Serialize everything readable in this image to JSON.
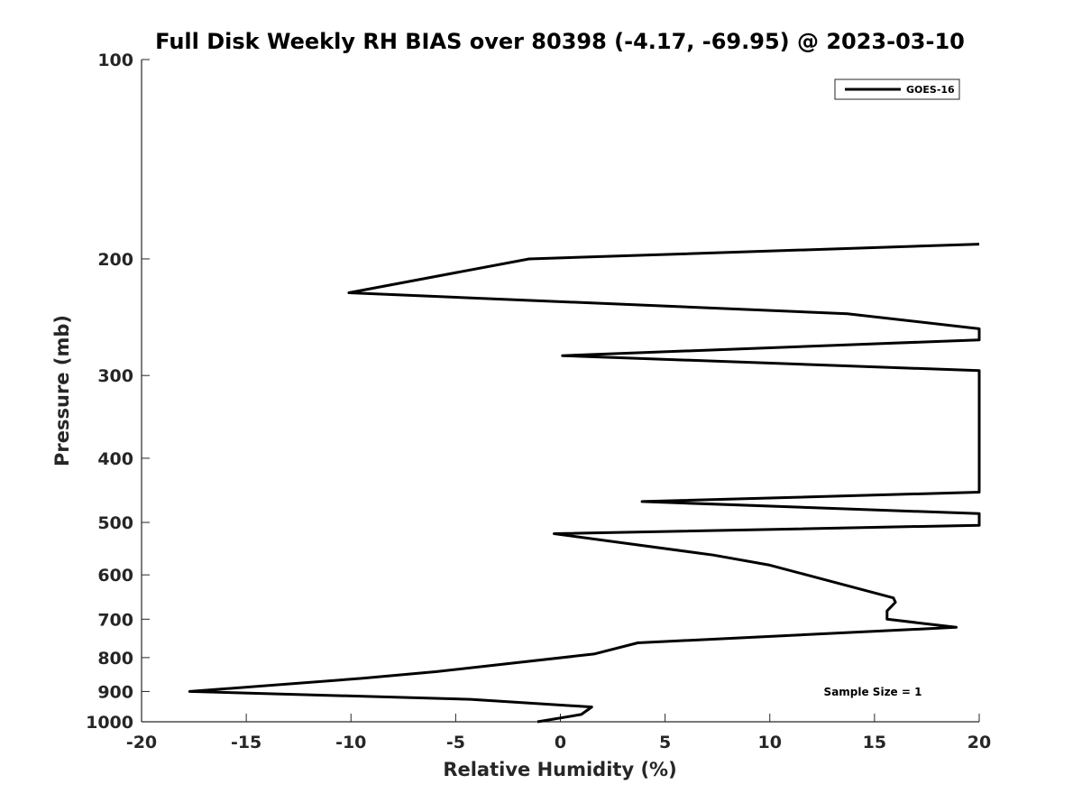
{
  "chart_data": {
    "type": "line",
    "title": "Full Disk Weekly RH BIAS over 80398 (-4.17, -69.95) @ 2023-03-10",
    "xlabel": "Relative Humidity (%)",
    "ylabel": "Pressure (mb)",
    "xlim": [
      -20,
      20
    ],
    "ylim": [
      1000,
      100
    ],
    "yscale": "log",
    "y_reversed": true,
    "grid": false,
    "legend_position": "top-right",
    "x_ticks": [
      -20,
      -15,
      -10,
      -5,
      0,
      5,
      10,
      15,
      20
    ],
    "x_tick_labels": [
      "-20",
      "-15",
      "-10",
      "-5",
      "0",
      "5",
      "10",
      "15",
      "20"
    ],
    "y_ticks": [
      100,
      200,
      300,
      400,
      500,
      600,
      700,
      800,
      900,
      1000
    ],
    "y_tick_labels": [
      "100",
      "200",
      "300",
      "400",
      "500",
      "600",
      "700",
      "800",
      "900",
      "1000"
    ],
    "series": [
      {
        "name": "GOES-16",
        "color": "#000000",
        "x": [
          -1.1,
          1.0,
          1.5,
          -4.3,
          -17.7,
          -9.5,
          -5.9,
          1.6,
          3.7,
          18.9,
          15.6,
          15.6,
          15.8,
          16.0,
          15.9,
          10.0,
          7.3,
          -0.3,
          20.0,
          20.0,
          3.9,
          20.0,
          20.0,
          0.1,
          20.0,
          20.0,
          13.7,
          -10.1,
          -1.5,
          20.0
        ],
        "y": [
          1000,
          975,
          950,
          925,
          900,
          860,
          840,
          790,
          760,
          720,
          700,
          680,
          670,
          660,
          650,
          580,
          560,
          520,
          505,
          485,
          465,
          450,
          295,
          280,
          265,
          255,
          242,
          225,
          200,
          190
        ]
      }
    ],
    "annotations": [
      "Sample Size = 1"
    ]
  },
  "colors": {
    "line": "#000000",
    "axis": "#262626",
    "background": "#ffffff"
  }
}
